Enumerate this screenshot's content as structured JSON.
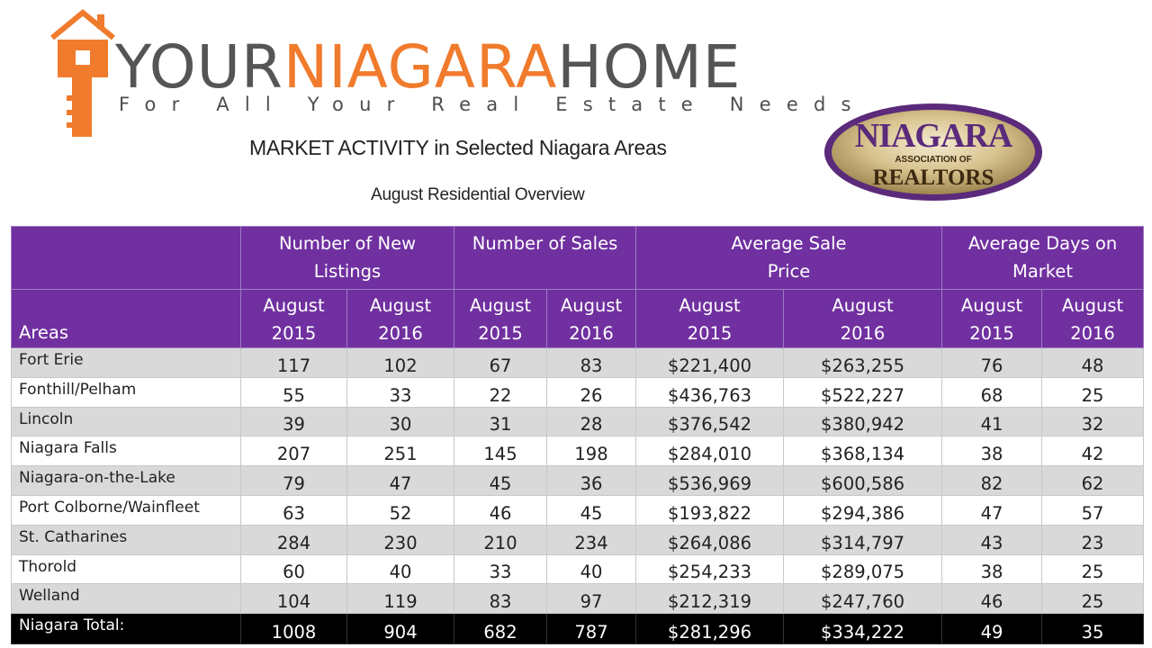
{
  "logo": {
    "part1": "YOUR",
    "part2": "NIAGARA",
    "part3": "HOME",
    "tagline": "For All Your Real Estate Needs",
    "icon": "house-key-icon"
  },
  "title": "MARKET ACTIVITY in Selected Niagara Areas",
  "subtitle": "August Residential Overview",
  "seal": {
    "line1": "NIAGARA",
    "line2": "ASSOCIATION OF",
    "line3": "REALTORS"
  },
  "colors": {
    "header_purple": "#7030a0",
    "logo_orange": "#f07b2c",
    "logo_gray": "#555555",
    "row_shade": "#d9d9d9",
    "total_row": "#000000"
  },
  "table": {
    "areas_label": "Areas",
    "groups": [
      "Number of New Listings",
      "Number of Sales",
      "Average Sale Price",
      "Average Days on Market"
    ],
    "years": [
      "August 2015",
      "August 2016"
    ],
    "rows": [
      {
        "area": "Fort Erie",
        "values": [
          "117",
          "102",
          "67",
          "83",
          "$221,400",
          "$263,255",
          "76",
          "48"
        ]
      },
      {
        "area": "Fonthill/Pelham",
        "values": [
          "55",
          "33",
          "22",
          "26",
          "$436,763",
          "$522,227",
          "68",
          "25"
        ]
      },
      {
        "area": "Lincoln",
        "values": [
          "39",
          "30",
          "31",
          "28",
          "$376,542",
          "$380,942",
          "41",
          "32"
        ]
      },
      {
        "area": "Niagara Falls",
        "values": [
          "207",
          "251",
          "145",
          "198",
          "$284,010",
          "$368,134",
          "38",
          "42"
        ]
      },
      {
        "area": "Niagara-on-the-Lake",
        "values": [
          "79",
          "47",
          "45",
          "36",
          "$536,969",
          "$600,586",
          "82",
          "62"
        ]
      },
      {
        "area": "Port Colborne/Wainfleet",
        "values": [
          "63",
          "52",
          "46",
          "45",
          "$193,822",
          "$294,386",
          "47",
          "57"
        ]
      },
      {
        "area": "St. Catharines",
        "values": [
          "284",
          "230",
          "210",
          "234",
          "$264,086",
          "$314,797",
          "43",
          "23"
        ]
      },
      {
        "area": "Thorold",
        "values": [
          "60",
          "40",
          "33",
          "40",
          "$254,233",
          "$289,075",
          "38",
          "25"
        ]
      },
      {
        "area": "Welland",
        "values": [
          "104",
          "119",
          "83",
          "97",
          "$212,319",
          "$247,760",
          "46",
          "25"
        ]
      }
    ],
    "total": {
      "area": "Niagara Total:",
      "values": [
        "1008",
        "904",
        "682",
        "787",
        "$281,296",
        "$334,222",
        "49",
        "35"
      ]
    }
  }
}
